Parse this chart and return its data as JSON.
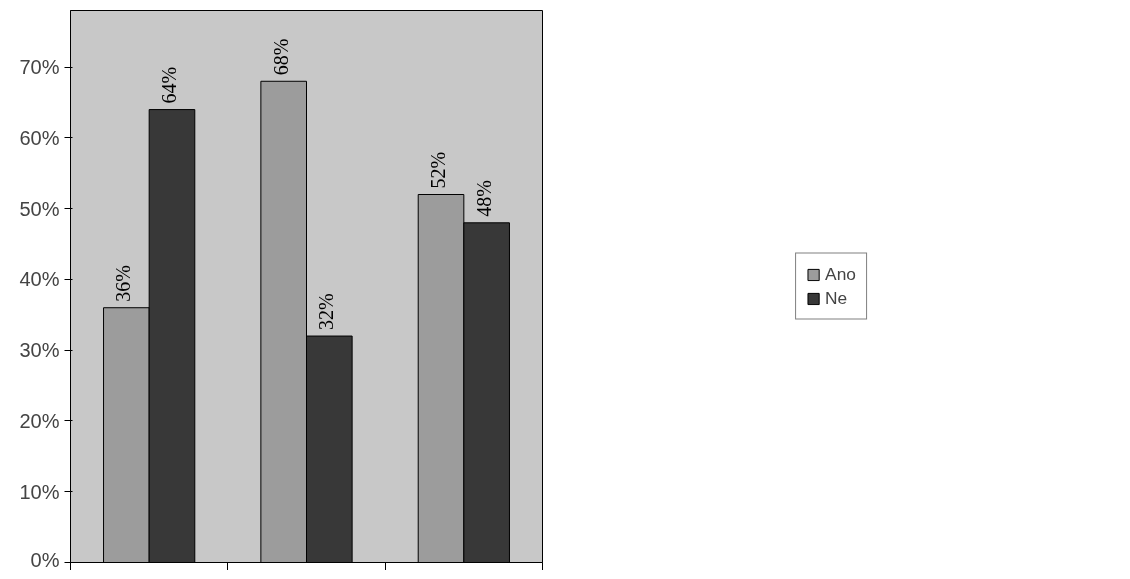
{
  "chart_data": {
    "type": "bar",
    "categories": [
      null,
      null,
      null
    ],
    "series": [
      {
        "name": "Ano",
        "color": "#9c9c9c",
        "values": [
          36,
          68,
          52
        ],
        "value_labels": [
          "36%",
          "68%",
          "52%"
        ]
      },
      {
        "name": "Ne",
        "color": "#383838",
        "values": [
          64,
          32,
          48
        ],
        "value_labels": [
          "64%",
          "32%",
          "48%"
        ]
      }
    ],
    "ylim": [
      0,
      78
    ],
    "yticks": [
      {
        "value": 0,
        "label": "0%"
      },
      {
        "value": 10,
        "label": "10%"
      },
      {
        "value": 20,
        "label": "20%"
      },
      {
        "value": 30,
        "label": "30%"
      },
      {
        "value": 40,
        "label": "40%"
      },
      {
        "value": 50,
        "label": "50%"
      },
      {
        "value": 60,
        "label": "60%"
      },
      {
        "value": 70,
        "label": "70%"
      }
    ],
    "tick_labels": "y",
    "grid": false,
    "legend": "right"
  }
}
